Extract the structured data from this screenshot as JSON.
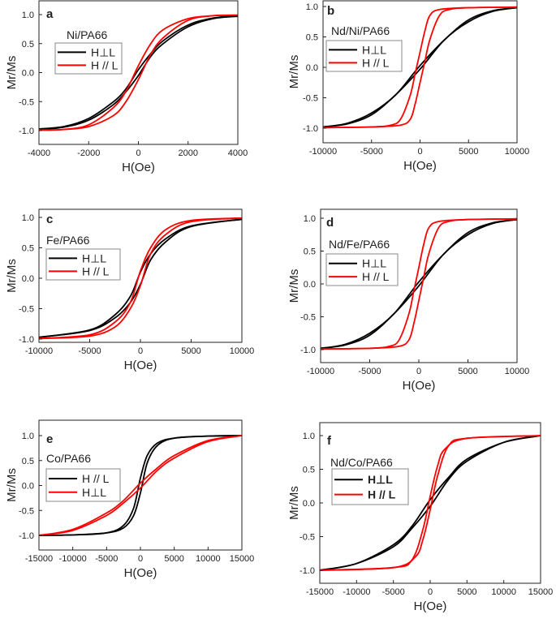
{
  "chart_data": [
    {
      "panel": "a",
      "type": "line",
      "sample": "Ni/PA66",
      "xlabel": "H(Oe)",
      "ylabel": "Mr/Ms",
      "xlim": [
        -4000,
        4000
      ],
      "ylim": [
        -1.25,
        1.25
      ],
      "xticks": [
        "-4000",
        "-2000",
        "0",
        "2000",
        "4000"
      ],
      "yticks": [
        "-1.0",
        "-0.5",
        "0.0",
        "0.5",
        "1.0"
      ],
      "legend_bold": false,
      "series": [
        {
          "name": "H⊥L",
          "color": "#000000",
          "upper_branch": [
            [
              -4000,
              -0.97
            ],
            [
              -3000,
              -0.93
            ],
            [
              -2000,
              -0.79
            ],
            [
              -1000,
              -0.5
            ],
            [
              -500,
              -0.28
            ],
            [
              0,
              0.05
            ],
            [
              500,
              0.33
            ],
            [
              1000,
              0.55
            ],
            [
              2000,
              0.82
            ],
            [
              3000,
              0.94
            ],
            [
              4000,
              0.98
            ]
          ]
        },
        {
          "name": "H // L",
          "color": "#ff0000",
          "upper_branch": [
            [
              -4000,
              -0.99
            ],
            [
              -3000,
              -0.98
            ],
            [
              -2000,
              -0.9
            ],
            [
              -1000,
              -0.6
            ],
            [
              -500,
              -0.32
            ],
            [
              0,
              0.12
            ],
            [
              500,
              0.5
            ],
            [
              1000,
              0.74
            ],
            [
              2000,
              0.93
            ],
            [
              3000,
              0.98
            ],
            [
              4000,
              0.99
            ]
          ]
        }
      ]
    },
    {
      "panel": "b",
      "type": "line",
      "sample": "Nd/Ni/PA66",
      "xlabel": "H(Oe)",
      "ylabel": "Mr/Ms",
      "xlim": [
        -10000,
        10000
      ],
      "ylim": [
        -1.2,
        1.1
      ],
      "xticks": [
        "-10000",
        "-5000",
        "0",
        "5000",
        "10000"
      ],
      "yticks": [
        "-1.0",
        "-0.5",
        "0.0",
        "0.5",
        "1.0"
      ],
      "legend_bold": false,
      "series": [
        {
          "name": "H⊥L",
          "color": "#000000",
          "upper_branch": [
            [
              -10000,
              -0.98
            ],
            [
              -7500,
              -0.92
            ],
            [
              -5000,
              -0.75
            ],
            [
              -2500,
              -0.45
            ],
            [
              0,
              0.03
            ],
            [
              2500,
              0.45
            ],
            [
              5000,
              0.78
            ],
            [
              7500,
              0.93
            ],
            [
              10000,
              0.98
            ]
          ]
        },
        {
          "name": "H // L",
          "color": "#ff0000",
          "upper_branch": [
            [
              -10000,
              -0.99
            ],
            [
              -5000,
              -0.98
            ],
            [
              -3000,
              -0.95
            ],
            [
              -2000,
              -0.85
            ],
            [
              -1000,
              -0.45
            ],
            [
              -500,
              -0.1
            ],
            [
              0,
              0.25
            ],
            [
              500,
              0.6
            ],
            [
              1000,
              0.85
            ],
            [
              2000,
              0.95
            ],
            [
              5000,
              0.98
            ],
            [
              10000,
              0.99
            ]
          ]
        }
      ]
    },
    {
      "panel": "c",
      "type": "line",
      "sample": "Fe/PA66",
      "xlabel": "H(Oe)",
      "ylabel": "Mr/Ms",
      "xlim": [
        -10000,
        10000
      ],
      "ylim": [
        -1.1,
        1.1
      ],
      "xticks": [
        "-10000",
        "-5000",
        "0",
        "5000",
        "10000"
      ],
      "yticks": [
        "-1.0",
        "-0.5",
        "0.0",
        "0.5",
        "1.0"
      ],
      "legend_bold": false,
      "series": [
        {
          "name": "H⊥L",
          "color": "#000000",
          "upper_branch": [
            [
              -10000,
              -0.97
            ],
            [
              -5000,
              -0.85
            ],
            [
              -2500,
              -0.6
            ],
            [
              -1000,
              -0.3
            ],
            [
              0,
              0.1
            ],
            [
              1000,
              0.4
            ],
            [
              2500,
              0.65
            ],
            [
              5000,
              0.86
            ],
            [
              10000,
              0.97
            ]
          ]
        },
        {
          "name": "H // L",
          "color": "#ff0000",
          "upper_branch": [
            [
              -10000,
              -0.99
            ],
            [
              -5000,
              -0.93
            ],
            [
              -2500,
              -0.72
            ],
            [
              -1000,
              -0.4
            ],
            [
              0,
              0.12
            ],
            [
              1000,
              0.5
            ],
            [
              2500,
              0.8
            ],
            [
              5000,
              0.95
            ],
            [
              10000,
              0.99
            ]
          ]
        }
      ]
    },
    {
      "panel": "d",
      "type": "line",
      "sample": "Nd/Fe/PA66",
      "xlabel": "H(Oe)",
      "ylabel": "Mr/Ms",
      "xlim": [
        -10000,
        10000
      ],
      "ylim": [
        -1.2,
        1.15
      ],
      "xticks": [
        "-10000",
        "-5000",
        "0",
        "5000",
        "10000"
      ],
      "yticks": [
        "-1.0",
        "-0.5",
        "0.0",
        "0.5",
        "1.0"
      ],
      "legend_bold": false,
      "series": [
        {
          "name": "H⊥L",
          "color": "#000000",
          "upper_branch": [
            [
              -10000,
              -0.98
            ],
            [
              -7500,
              -0.92
            ],
            [
              -5000,
              -0.75
            ],
            [
              -2500,
              -0.45
            ],
            [
              0,
              0.03
            ],
            [
              2500,
              0.45
            ],
            [
              5000,
              0.78
            ],
            [
              7500,
              0.93
            ],
            [
              10000,
              0.98
            ]
          ]
        },
        {
          "name": "H // L",
          "color": "#ff0000",
          "upper_branch": [
            [
              -10000,
              -0.99
            ],
            [
              -5000,
              -0.98
            ],
            [
              -3000,
              -0.95
            ],
            [
              -2000,
              -0.85
            ],
            [
              -1000,
              -0.45
            ],
            [
              -500,
              -0.1
            ],
            [
              0,
              0.25
            ],
            [
              500,
              0.6
            ],
            [
              1000,
              0.85
            ],
            [
              2000,
              0.95
            ],
            [
              5000,
              0.98
            ],
            [
              10000,
              0.99
            ]
          ]
        }
      ]
    },
    {
      "panel": "e",
      "type": "line",
      "sample": "Co/PA66",
      "xlabel": "H(Oe)",
      "ylabel": "Mr/Ms",
      "xlim": [
        -15000,
        15000
      ],
      "ylim": [
        -1.3,
        1.3
      ],
      "xticks": [
        "-15000",
        "-10000",
        "-5000",
        "0",
        "5000",
        "10000",
        "15000"
      ],
      "yticks": [
        "-1.0",
        "-0.5",
        "0.0",
        "0.5",
        "1.0"
      ],
      "legend_bold": false,
      "series": [
        {
          "name": "H // L",
          "color": "#000000",
          "upper_branch": [
            [
              -15000,
              -1
            ],
            [
              -10000,
              -0.99
            ],
            [
              -5000,
              -0.95
            ],
            [
              -2500,
              -0.8
            ],
            [
              -1000,
              -0.45
            ],
            [
              0,
              0.15
            ],
            [
              1000,
              0.6
            ],
            [
              2500,
              0.85
            ],
            [
              5000,
              0.95
            ],
            [
              10000,
              0.99
            ],
            [
              15000,
              1.0
            ]
          ]
        },
        {
          "name": "H⊥L",
          "color": "#ff0000",
          "upper_branch": [
            [
              -15000,
              -1
            ],
            [
              -10000,
              -0.88
            ],
            [
              -5000,
              -0.55
            ],
            [
              -2500,
              -0.3
            ],
            [
              0,
              0.05
            ],
            [
              2500,
              0.35
            ],
            [
              5000,
              0.6
            ],
            [
              10000,
              0.9
            ],
            [
              15000,
              1.0
            ]
          ]
        }
      ]
    },
    {
      "panel": "f",
      "type": "line",
      "sample": "Nd/Co/PA66",
      "xlabel": "H(Oe)",
      "ylabel": "Mr/Ms",
      "xlim": [
        -15000,
        15000
      ],
      "ylim": [
        -1.2,
        1.2
      ],
      "xticks": [
        "-15000",
        "-10000",
        "-5000",
        "0",
        "5000",
        "10000",
        "15000"
      ],
      "yticks": [
        "-1.0",
        "-0.5",
        "0.0",
        "0.5",
        "1.0"
      ],
      "legend_bold": true,
      "series": [
        {
          "name": "H⊥L",
          "color": "#000000",
          "upper_branch": [
            [
              -15000,
              -1
            ],
            [
              -10000,
              -0.9
            ],
            [
              -5000,
              -0.62
            ],
            [
              -2500,
              -0.35
            ],
            [
              0,
              0.05
            ],
            [
              2500,
              0.38
            ],
            [
              5000,
              0.65
            ],
            [
              10000,
              0.9
            ],
            [
              15000,
              1
            ]
          ]
        },
        {
          "name": "H // L",
          "color": "#ff0000",
          "upper_branch": [
            [
              -15000,
              -1
            ],
            [
              -5000,
              -0.96
            ],
            [
              -2500,
              -0.85
            ],
            [
              -1000,
              -0.4
            ],
            [
              0,
              0.1
            ],
            [
              1000,
              0.55
            ],
            [
              2000,
              0.8
            ],
            [
              5000,
              0.96
            ],
            [
              15000,
              1
            ]
          ]
        }
      ]
    }
  ]
}
